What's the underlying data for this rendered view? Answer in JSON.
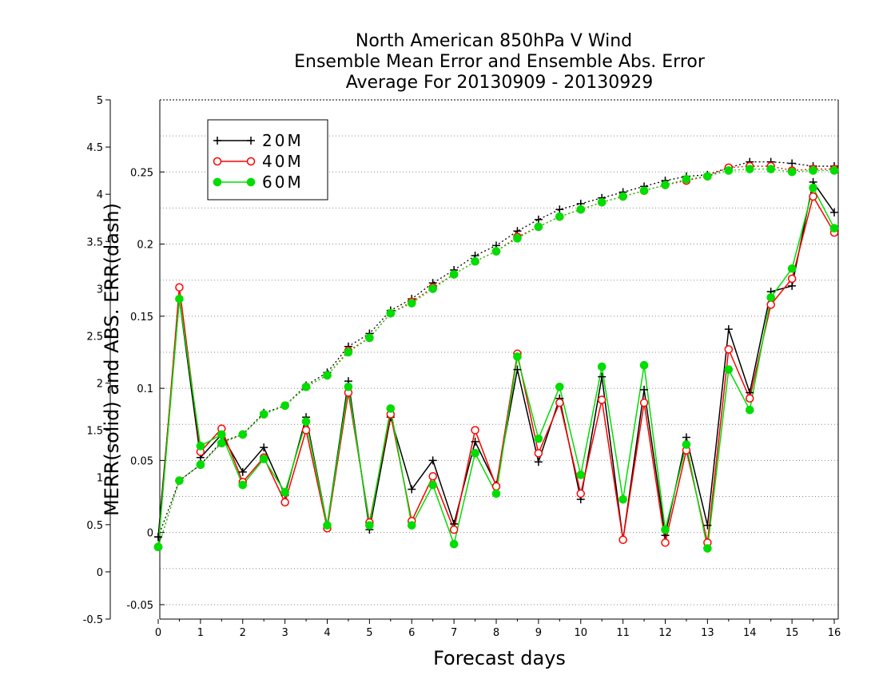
{
  "chart_data": {
    "type": "line",
    "title_lines": [
      "North American 850hPa V Wind",
      "Ensemble Mean Error and Ensemble Abs. Error",
      "Average For 20130909 - 20130929"
    ],
    "xlabel": "Forecast days",
    "ylabel": "MERR(solid) and ABS. ERR(dash)",
    "x_ticks": [
      "0",
      "1",
      "2",
      "3",
      "4",
      "5",
      "6",
      "7",
      "8",
      "9",
      "10",
      "11",
      "12",
      "13",
      "14",
      "15",
      "16"
    ],
    "xlim": [
      0,
      16
    ],
    "ylim_right": [
      -0.06,
      0.3
    ],
    "y_ticks_right": [
      "-0.05",
      "0",
      "0.05",
      "0.1",
      "0.15",
      "0.2",
      "0.25"
    ],
    "ylim_left": [
      -0.5,
      5
    ],
    "y_ticks_left": [
      "-0.5",
      "0",
      "0.5",
      "1",
      "1.5",
      "2",
      "2.5",
      "3",
      "3.5",
      "4",
      "4.5",
      "5"
    ],
    "grid": "horizontal dotted",
    "legend_placement": "top-left",
    "x": [
      0,
      0.5,
      1,
      1.5,
      2,
      2.5,
      3,
      3.5,
      4,
      4.5,
      5,
      5.5,
      6,
      6.5,
      7,
      7.5,
      8,
      8.5,
      9,
      9.5,
      10,
      10.5,
      11,
      11.5,
      12,
      12.5,
      13,
      13.5,
      14,
      14.5,
      15,
      15.5,
      16
    ],
    "series": [
      {
        "name": "20M",
        "color": "#000000",
        "marker": "plus",
        "merr": [
          -0.003,
          0.162,
          0.052,
          0.068,
          0.042,
          0.059,
          0.026,
          0.08,
          0.005,
          0.105,
          0.002,
          0.08,
          0.03,
          0.05,
          0.006,
          0.063,
          0.033,
          0.113,
          0.049,
          0.093,
          0.023,
          0.108,
          -0.005,
          0.099,
          -0.002,
          0.066,
          0.005,
          0.141,
          0.097,
          0.167,
          0.171,
          0.243,
          0.222
        ],
        "abs_err": [
          -0.003,
          0.036,
          0.047,
          0.063,
          0.068,
          0.083,
          0.088,
          0.102,
          0.111,
          0.129,
          0.138,
          0.154,
          0.162,
          0.173,
          0.182,
          0.192,
          0.199,
          0.209,
          0.217,
          0.224,
          0.228,
          0.232,
          0.236,
          0.24,
          0.244,
          0.247,
          0.248,
          0.253,
          0.257,
          0.257,
          0.256,
          0.254,
          0.254
        ]
      },
      {
        "name": "40M",
        "color": "#ff0000",
        "marker": "open-circle",
        "merr": [
          -0.01,
          0.17,
          0.056,
          0.072,
          0.035,
          0.052,
          0.021,
          0.071,
          0.003,
          0.097,
          0.007,
          0.082,
          0.008,
          0.039,
          0.002,
          0.071,
          0.032,
          0.124,
          0.055,
          0.09,
          0.027,
          0.092,
          -0.005,
          0.09,
          -0.007,
          0.057,
          -0.007,
          0.127,
          0.093,
          0.158,
          0.176,
          0.233,
          0.208
        ],
        "abs_err": [
          -0.01,
          0.036,
          0.047,
          0.062,
          0.068,
          0.082,
          0.088,
          0.101,
          0.109,
          0.126,
          0.135,
          0.152,
          0.16,
          0.17,
          0.179,
          0.188,
          0.195,
          0.205,
          0.212,
          0.219,
          0.224,
          0.229,
          0.233,
          0.237,
          0.241,
          0.244,
          0.247,
          0.253,
          0.254,
          0.254,
          0.251,
          0.252,
          0.252
        ]
      },
      {
        "name": "60M",
        "color": "#00dd00",
        "marker": "filled-circle",
        "merr": [
          -0.01,
          0.162,
          0.06,
          0.068,
          0.033,
          0.051,
          0.028,
          0.077,
          0.005,
          0.101,
          0.005,
          0.086,
          0.005,
          0.033,
          -0.008,
          0.055,
          0.027,
          0.122,
          0.065,
          0.101,
          0.04,
          0.115,
          0.023,
          0.116,
          0.002,
          0.061,
          -0.011,
          0.113,
          0.085,
          0.163,
          0.183,
          0.239,
          0.211
        ],
        "abs_err": [
          -0.01,
          0.036,
          0.047,
          0.062,
          0.068,
          0.082,
          0.088,
          0.101,
          0.109,
          0.125,
          0.135,
          0.152,
          0.159,
          0.169,
          0.179,
          0.188,
          0.195,
          0.204,
          0.212,
          0.219,
          0.224,
          0.229,
          0.233,
          0.237,
          0.241,
          0.245,
          0.247,
          0.251,
          0.252,
          0.252,
          0.25,
          0.251,
          0.251
        ]
      }
    ]
  }
}
